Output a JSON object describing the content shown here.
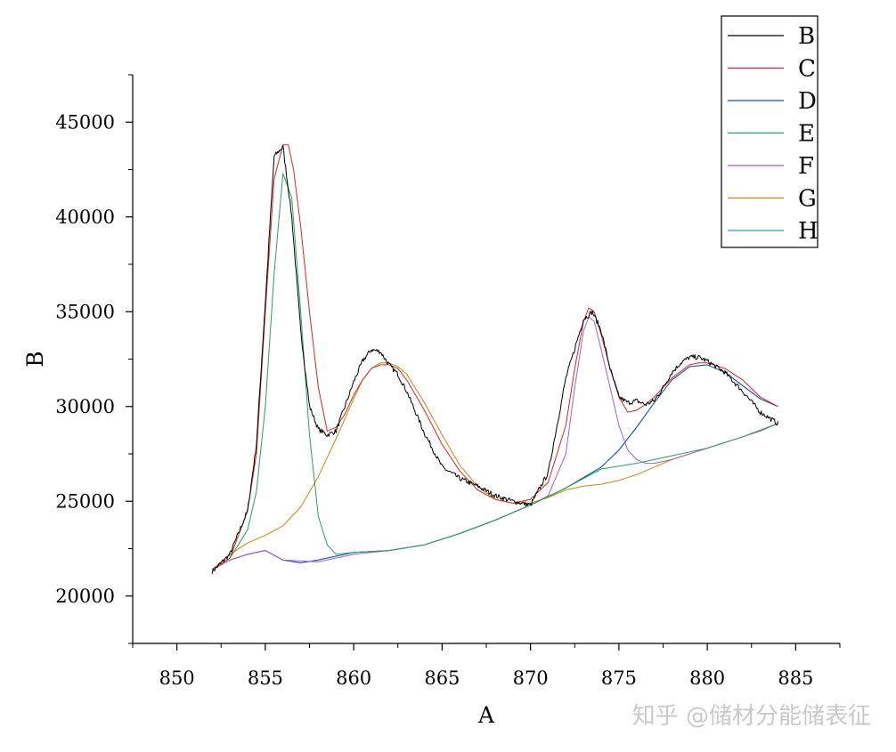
{
  "watermark": "知乎 @储材分能储表征",
  "chart_data": {
    "type": "line",
    "xlabel": "A",
    "ylabel": "B",
    "xlim": [
      847.5,
      887.5
    ],
    "ylim": [
      17500,
      47500
    ],
    "xticks": [
      850,
      855,
      860,
      865,
      870,
      875,
      880,
      885
    ],
    "yticks": [
      20000,
      25000,
      30000,
      35000,
      40000,
      45000
    ],
    "grid": false,
    "legend_position": "top-right",
    "series": [
      {
        "name": "B",
        "color": "#000000",
        "noisy": true,
        "x": [
          852,
          853,
          854,
          854.5,
          855,
          855.5,
          856,
          856.5,
          857,
          857.5,
          858,
          858.5,
          859,
          859.5,
          860,
          860.5,
          861,
          861.5,
          862,
          862.5,
          863,
          864,
          865,
          866,
          867,
          868,
          869,
          870,
          871,
          872,
          873,
          873.5,
          874,
          874.5,
          875,
          875.5,
          876,
          876.5,
          877,
          877.5,
          878,
          878.5,
          879,
          879.5,
          880,
          881,
          882,
          883,
          884
        ],
        "y": [
          21300,
          22200,
          24500,
          28000,
          35500,
          43200,
          43700,
          40000,
          34000,
          30000,
          28800,
          28500,
          28700,
          30000,
          31300,
          32400,
          33000,
          32900,
          32200,
          31700,
          30800,
          28600,
          26800,
          26200,
          25800,
          25300,
          25000,
          24800,
          26500,
          31500,
          34600,
          35000,
          34000,
          32000,
          30500,
          30200,
          30300,
          30100,
          30300,
          31000,
          31800,
          32300,
          32600,
          32600,
          32400,
          31800,
          30800,
          29700,
          29100
        ]
      },
      {
        "name": "C",
        "color": "#d62728",
        "x": [
          852,
          853,
          854,
          854.5,
          855,
          855.5,
          856,
          856.3,
          856.6,
          857,
          857.5,
          858,
          858.5,
          859,
          859.5,
          860,
          860.5,
          861,
          861.5,
          862,
          862.5,
          863,
          864,
          865,
          866,
          867,
          868,
          869,
          870,
          871,
          872,
          872.5,
          873,
          873.3,
          873.6,
          874,
          874.5,
          875,
          875.5,
          876,
          876.5,
          877,
          878,
          879,
          879.5,
          880,
          881,
          882,
          883,
          884
        ],
        "y": [
          21400,
          22000,
          24500,
          27500,
          35000,
          42000,
          43800,
          43800,
          42500,
          39500,
          35000,
          31000,
          28700,
          28900,
          29600,
          30600,
          31400,
          32000,
          32200,
          32200,
          32000,
          31400,
          29800,
          28000,
          26600,
          25600,
          25100,
          24900,
          25100,
          26000,
          29000,
          32000,
          34500,
          35200,
          35000,
          33800,
          32000,
          30500,
          29700,
          29800,
          30100,
          30500,
          31500,
          32200,
          32300,
          32300,
          32000,
          31400,
          30500,
          30000
        ]
      },
      {
        "name": "D",
        "color": "#1f4e9a",
        "x": [
          852,
          853,
          854,
          855,
          856,
          857,
          858,
          859,
          860,
          862,
          864,
          866,
          868,
          870,
          872,
          874,
          875,
          876,
          877,
          878,
          879,
          880,
          881,
          882,
          883,
          884
        ],
        "y": [
          21400,
          21900,
          22200,
          22400,
          21900,
          21750,
          21900,
          22100,
          22300,
          22400,
          22700,
          23300,
          24000,
          24800,
          25700,
          26800,
          27700,
          28900,
          30200,
          31400,
          32100,
          32200,
          31800,
          31100,
          30400,
          30000
        ]
      },
      {
        "name": "E",
        "color": "#2ca05a",
        "x": [
          852,
          853,
          854,
          854.5,
          855,
          855.5,
          856,
          856.5,
          857,
          857.5,
          858,
          858.5,
          859,
          860,
          862,
          864,
          866,
          868,
          870,
          872,
          874,
          876,
          878,
          880,
          882,
          884
        ],
        "y": [
          21400,
          22000,
          23500,
          25500,
          30000,
          37000,
          42300,
          41000,
          35000,
          28500,
          24200,
          22700,
          22200,
          22300,
          22400,
          22700,
          23300,
          24000,
          24800,
          25700,
          26700,
          27000,
          27400,
          27800,
          28400,
          29100
        ]
      },
      {
        "name": "F",
        "color": "#a65fc4",
        "x": [
          852,
          853,
          854,
          855,
          856,
          858,
          860,
          862,
          864,
          866,
          868,
          870,
          871,
          872,
          872.5,
          873,
          873.3,
          873.6,
          874,
          874.5,
          875,
          875.5,
          876,
          876.5,
          877,
          878,
          879,
          880,
          881,
          882,
          883,
          884
        ],
        "y": [
          21400,
          21900,
          22200,
          22400,
          21900,
          21800,
          22200,
          22400,
          22700,
          23300,
          24000,
          24800,
          25300,
          27500,
          31000,
          34000,
          34700,
          34500,
          33000,
          31000,
          29000,
          27700,
          27200,
          27000,
          27000,
          27200,
          27500,
          27800,
          28100,
          28400,
          28700,
          29100
        ]
      },
      {
        "name": "G",
        "color": "#c48a10",
        "x": [
          852,
          853,
          854,
          855,
          856,
          857,
          858,
          859,
          860,
          860.5,
          861,
          861.5,
          862,
          862.5,
          863,
          864,
          865,
          866,
          867,
          868,
          869,
          870,
          871,
          872,
          873,
          874,
          875,
          876,
          877,
          878,
          880,
          882,
          884
        ],
        "y": [
          21400,
          22200,
          22800,
          23200,
          23700,
          24700,
          26300,
          28300,
          30400,
          31400,
          32000,
          32300,
          32300,
          32100,
          31700,
          30200,
          28500,
          26900,
          25800,
          25100,
          24900,
          24900,
          25200,
          25600,
          25800,
          25900,
          26100,
          26400,
          26800,
          27200,
          27800,
          28400,
          29100
        ]
      },
      {
        "name": "H",
        "color": "#17a9c9",
        "x": [
          852,
          853,
          854,
          855,
          856,
          857,
          858,
          859,
          860,
          862,
          864,
          866,
          868,
          870,
          872,
          874,
          875,
          876,
          877,
          878,
          879,
          880,
          881,
          882,
          883,
          884
        ],
        "y": [
          21400,
          21900,
          22200,
          22400,
          21900,
          21750,
          21900,
          22100,
          22300,
          22400,
          22700,
          23300,
          24000,
          24800,
          25700,
          26800,
          27700,
          28900,
          30200,
          31400,
          32100,
          32200,
          31800,
          31100,
          30400,
          30000
        ]
      }
    ]
  }
}
